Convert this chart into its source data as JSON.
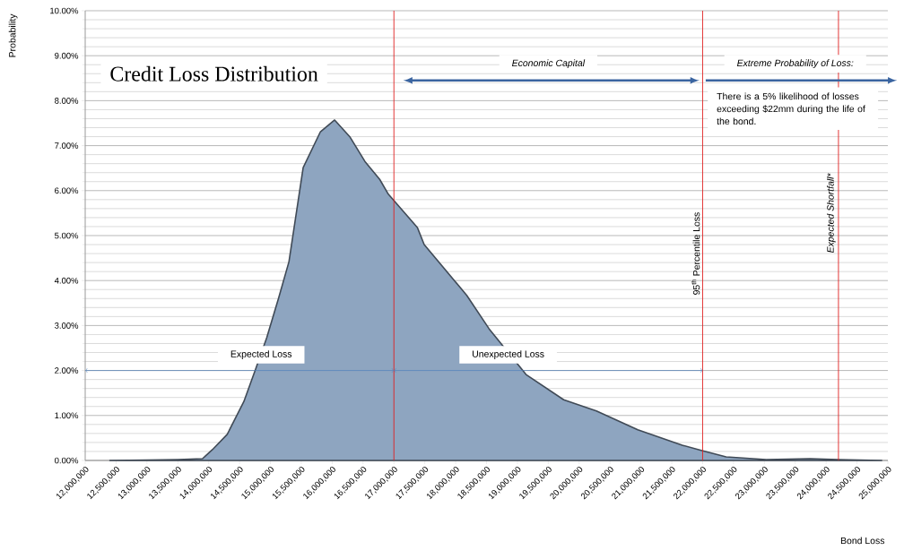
{
  "chart_data": {
    "type": "area",
    "title": "Credit Loss Distribution",
    "xlabel": "Bond Loss",
    "ylabel": "Probability",
    "x": [
      12400000,
      13000000,
      13500000,
      13900000,
      14060000,
      14300000,
      14570000,
      14760000,
      14940000,
      15130000,
      15300000,
      15530000,
      15810000,
      16040000,
      16290000,
      16530000,
      16770000,
      16910000,
      17380000,
      17490000,
      18180000,
      18540000,
      19140000,
      19750000,
      20280000,
      20950000,
      21670000,
      21990000,
      22380000,
      23030000,
      23740000,
      24200000,
      24900000
    ],
    "series": [
      {
        "color": "#8ea5c0",
        "values": [
          0,
          0.01,
          0.02,
          0.04,
          0.24,
          0.58,
          1.31,
          2.03,
          2.73,
          3.6,
          4.42,
          6.51,
          7.31,
          7.57,
          7.19,
          6.65,
          6.25,
          5.92,
          5.18,
          4.8,
          3.67,
          2.93,
          1.91,
          1.35,
          1.1,
          0.68,
          0.34,
          0.22,
          0.08,
          0.02,
          0.04,
          0.02,
          0
        ]
      }
    ],
    "xlim": [
      12000000,
      25000000
    ],
    "ylim": [
      0,
      10
    ],
    "xticks": [
      {
        "value": 12000000,
        "label": "12,000,000"
      },
      {
        "value": 12500000,
        "label": "12,500,000"
      },
      {
        "value": 13000000,
        "label": "13,000,000"
      },
      {
        "value": 13500000,
        "label": "13,500,000"
      },
      {
        "value": 14000000,
        "label": "14,000,000"
      },
      {
        "value": 14500000,
        "label": "14,500,000"
      },
      {
        "value": 15000000,
        "label": "15,000,000"
      },
      {
        "value": 15500000,
        "label": "15,500,000"
      },
      {
        "value": 16000000,
        "label": "16,000,000"
      },
      {
        "value": 16500000,
        "label": "16,500,000"
      },
      {
        "value": 17000000,
        "label": "17,000,000"
      },
      {
        "value": 17500000,
        "label": "17,500,000"
      },
      {
        "value": 18000000,
        "label": "18,000,000"
      },
      {
        "value": 18500000,
        "label": "18,500,000"
      },
      {
        "value": 19000000,
        "label": "19,000,000"
      },
      {
        "value": 19500000,
        "label": "19,500,000"
      },
      {
        "value": 20000000,
        "label": "20,000,000"
      },
      {
        "value": 20500000,
        "label": "20,500,000"
      },
      {
        "value": 21000000,
        "label": "21,000,000"
      },
      {
        "value": 21500000,
        "label": "21,500,000"
      },
      {
        "value": 22000000,
        "label": "22,000,000"
      },
      {
        "value": 22500000,
        "label": "22,500,000"
      },
      {
        "value": 23000000,
        "label": "23,000,000"
      },
      {
        "value": 23500000,
        "label": "23,500,000"
      },
      {
        "value": 24000000,
        "label": "24,000,000"
      },
      {
        "value": 24500000,
        "label": "24,500,000"
      },
      {
        "value": 25000000,
        "label": "25,000,000"
      }
    ],
    "yticks": [
      {
        "value": 0,
        "label": "0.00%"
      },
      {
        "value": 1,
        "label": "1.00%"
      },
      {
        "value": 2,
        "label": "2.00%"
      },
      {
        "value": 3,
        "label": "3.00%"
      },
      {
        "value": 4,
        "label": "4.00%"
      },
      {
        "value": 5,
        "label": "5.00%"
      },
      {
        "value": 6,
        "label": "6.00%"
      },
      {
        "value": 7,
        "label": "7.00%"
      },
      {
        "value": 8,
        "label": "8.00%"
      },
      {
        "value": 9,
        "label": "9.00%"
      },
      {
        "value": 10,
        "label": "10.00%"
      }
    ],
    "grid": "y",
    "ref_lines": [
      {
        "axis": "x",
        "value": 17000000,
        "color": "#e02020"
      },
      {
        "axis": "x",
        "value": 22000000,
        "color": "#e02020",
        "label": "95$^{th}$ Percentile Loss"
      },
      {
        "axis": "x",
        "value": 24200000,
        "color": "#e02020",
        "label": "Expected Shortfall*"
      }
    ],
    "annotations": [
      "Expected Loss",
      "Unexpected Loss",
      "Economic Capital",
      "Extreme Probability of Loss:",
      "There is a 5% likelihood of losses exceeding $22mm during the life of the bond."
    ]
  }
}
